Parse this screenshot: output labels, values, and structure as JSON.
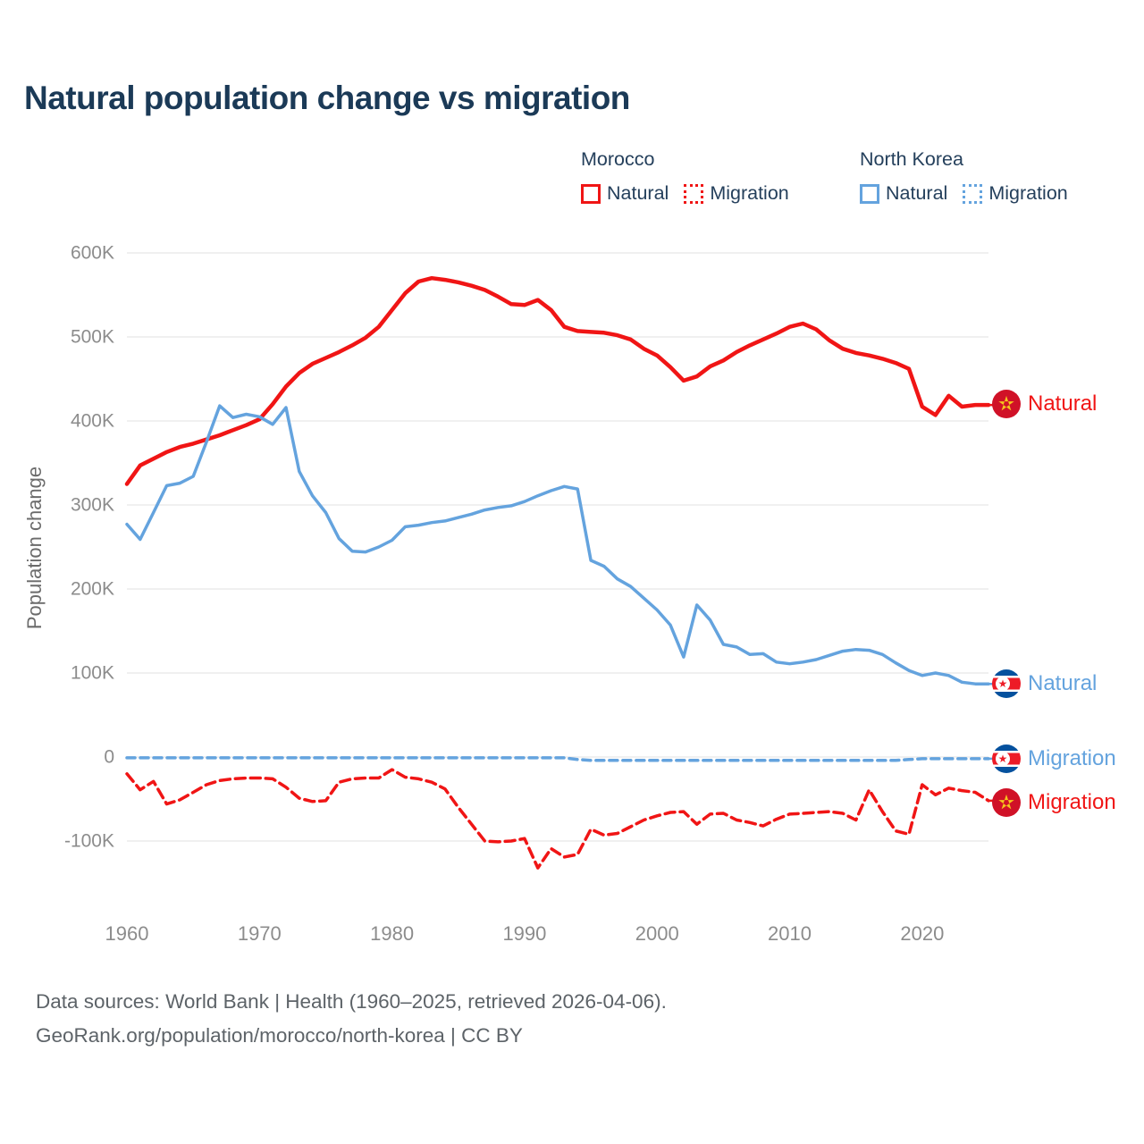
{
  "title": "Natural population change vs migration",
  "legend": {
    "morocco": {
      "title": "Morocco",
      "natural": "Natural",
      "migration": "Migration"
    },
    "north_korea": {
      "title": "North Korea",
      "natural": "Natural",
      "migration": "Migration"
    }
  },
  "end_labels": {
    "morocco_natural": "Natural",
    "north_korea_natural": "Natural",
    "north_korea_migration": "Migration",
    "morocco_migration": "Migration"
  },
  "footer": {
    "line1": "Data sources: World Bank | Health (1960–2025, retrieved 2026-04-06).",
    "line2": "GeoRank.org/population/morocco/north-korea | CC BY"
  },
  "colors": {
    "morocco_red": "#f01515",
    "north_korea_blue": "#64a3de",
    "title_navy": "#1b3a57",
    "tick_gray": "#8c8c8c",
    "gridline": "#e8e8e8",
    "morocco_flag_red": "#d01127",
    "morocco_flag_star": "#f5c51d",
    "nk_flag_blue": "#04519e",
    "nk_flag_red": "#ed1c27"
  },
  "chart_data": {
    "type": "line",
    "title": "Natural population change vs migration",
    "xlabel": "",
    "ylabel": "Population change",
    "values_unit": "thousand persons",
    "x_range": [
      1960,
      2025
    ],
    "y_range_thousands": [
      -150,
      620
    ],
    "grid": true,
    "legend_position": "top-right",
    "x_ticks": [
      1960,
      1970,
      1980,
      1990,
      2000,
      2010,
      2020
    ],
    "y_ticks": [
      {
        "value": 600,
        "label": "600K"
      },
      {
        "value": 500,
        "label": "500K"
      },
      {
        "value": 400,
        "label": "400K"
      },
      {
        "value": 300,
        "label": "300K"
      },
      {
        "value": 200,
        "label": "200K"
      },
      {
        "value": 100,
        "label": "100K"
      },
      {
        "value": 0,
        "label": "0"
      },
      {
        "value": -100,
        "label": "-100K"
      }
    ],
    "years": [
      1960,
      1961,
      1962,
      1963,
      1964,
      1965,
      1966,
      1967,
      1968,
      1969,
      1970,
      1971,
      1972,
      1973,
      1974,
      1975,
      1976,
      1977,
      1978,
      1979,
      1980,
      1981,
      1982,
      1983,
      1984,
      1985,
      1986,
      1987,
      1988,
      1989,
      1990,
      1991,
      1992,
      1993,
      1994,
      1995,
      1996,
      1997,
      1998,
      1999,
      2000,
      2001,
      2002,
      2003,
      2004,
      2005,
      2006,
      2007,
      2008,
      2009,
      2010,
      2011,
      2012,
      2013,
      2014,
      2015,
      2016,
      2017,
      2018,
      2019,
      2020,
      2021,
      2022,
      2023,
      2024,
      2025
    ],
    "series": [
      {
        "id": "morocco-migration",
        "name": "Morocco Migration",
        "color": "#f01515",
        "style": "dashed",
        "dash": "11 6",
        "width": 3.5,
        "values": [
          -20,
          -39,
          -29,
          -56,
          -51,
          -42,
          -33,
          -28,
          -26,
          -25,
          -25,
          -26,
          -36,
          -49,
          -53,
          -52,
          -30,
          -26,
          -25,
          -25,
          -15,
          -24,
          -26,
          -30,
          -38,
          -60,
          -80,
          -100,
          -101,
          -100,
          -97,
          -132,
          -109,
          -119,
          -116,
          -86,
          -93,
          -91,
          -83,
          -75,
          -70,
          -66,
          -65,
          -80,
          -68,
          -67,
          -75,
          -78,
          -82,
          -74,
          -68,
          -67,
          -66,
          -65,
          -67,
          -75,
          -39,
          -65,
          -88,
          -92,
          -33,
          -45,
          -37,
          -40,
          -42,
          -52
        ]
      },
      {
        "id": "north-korea-migration",
        "name": "North Korea Migration",
        "color": "#64a3de",
        "style": "dashed",
        "dash": "9 6",
        "width": 3.5,
        "values": [
          -1,
          -1,
          -1,
          -1,
          -1,
          -1,
          -1,
          -1,
          -1,
          -1,
          -1,
          -1,
          -1,
          -1,
          -1,
          -1,
          -1,
          -1,
          -1,
          -1,
          -1,
          -1,
          -1,
          -1,
          -1,
          -1,
          -1,
          -1,
          -1,
          -1,
          -1,
          -1,
          -1,
          -1,
          -3,
          -4,
          -4,
          -4,
          -4,
          -4,
          -4,
          -4,
          -4,
          -4,
          -4,
          -4,
          -4,
          -4,
          -4,
          -4,
          -4,
          -4,
          -4,
          -4,
          -4,
          -4,
          -4,
          -4,
          -4,
          -3,
          -2,
          -2,
          -2,
          -2,
          -2,
          -2
        ]
      },
      {
        "id": "morocco-natural",
        "name": "Morocco Natural",
        "color": "#f01515",
        "style": "solid",
        "dash": null,
        "width": 4.5,
        "values": [
          325,
          347,
          355,
          363,
          369,
          373,
          378,
          383,
          389,
          395,
          402,
          420,
          441,
          457,
          468,
          475,
          482,
          490,
          499,
          512,
          532,
          552,
          566,
          570,
          568,
          565,
          561,
          556,
          548,
          539,
          538,
          544,
          532,
          512,
          507,
          506,
          505,
          502,
          497,
          486,
          478,
          464,
          448,
          453,
          465,
          472,
          482,
          490,
          497,
          504,
          512,
          516,
          509,
          496,
          486,
          481,
          478,
          474,
          469,
          462,
          417,
          407,
          430,
          417,
          419,
          419
        ]
      },
      {
        "id": "north-korea-natural",
        "name": "North Korea Natural",
        "color": "#64a3de",
        "style": "solid",
        "dash": null,
        "width": 3.5,
        "values": [
          277,
          259,
          291,
          323,
          326,
          334,
          375,
          418,
          404,
          408,
          405,
          396,
          416,
          340,
          311,
          291,
          260,
          245,
          244,
          250,
          258,
          274,
          276,
          279,
          281,
          285,
          289,
          294,
          297,
          299,
          304,
          311,
          317,
          322,
          319,
          234,
          227,
          212,
          203,
          189,
          175,
          157,
          119,
          181,
          163,
          134,
          131,
          122,
          123,
          113,
          111,
          113,
          116,
          121,
          126,
          128,
          127,
          122,
          112,
          103,
          97,
          100,
          97,
          89,
          87,
          87
        ]
      }
    ]
  }
}
